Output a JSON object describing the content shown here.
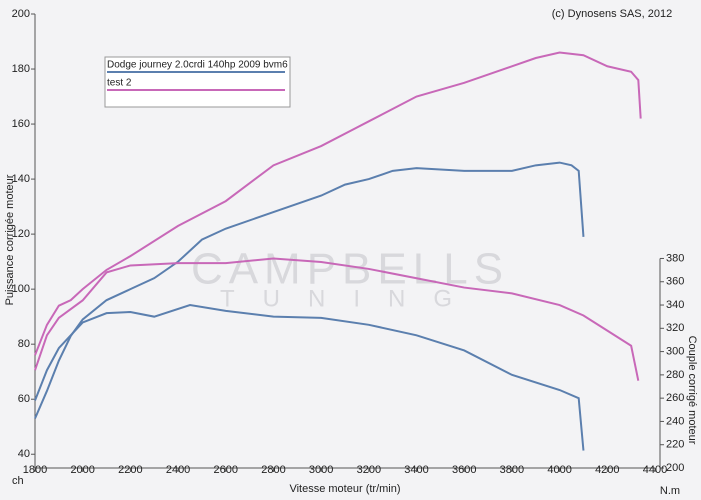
{
  "chart_data": {
    "type": "line",
    "title": "(c) Dynosens SAS, 2012",
    "xlabel": "Vitesse moteur (tr/min)",
    "ylabel": "Puissance corrigée moteur",
    "y2label": "Couple corrigé moteur",
    "yunit": "ch",
    "y2unit": "N.m",
    "watermark": [
      "CAMPBELLS",
      "TUNING"
    ],
    "xlim": [
      1800,
      4400
    ],
    "xticks": [
      1800,
      2000,
      2200,
      2400,
      2600,
      2800,
      3000,
      3200,
      3400,
      3600,
      3800,
      4000,
      4200,
      4400
    ],
    "ylim": [
      35,
      200
    ],
    "yticks": [
      40,
      60,
      80,
      100,
      120,
      140,
      160,
      180,
      200
    ],
    "y2lim": [
      200,
      590
    ],
    "y2ticks": [
      200,
      220,
      240,
      260,
      280,
      300,
      320,
      340,
      360,
      380
    ],
    "legend": "upper left",
    "series": [
      {
        "name": "Dodge journey 2.0crdi 140hp 2009 bvm6",
        "color": "#5b7fae",
        "x": [
          1800,
          1850,
          1900,
          1950,
          2000,
          2100,
          2200,
          2300,
          2400,
          2500,
          2600,
          2800,
          3000,
          3100,
          3200,
          3300,
          3400,
          3600,
          3800,
          3900,
          4000,
          4050,
          4080,
          4100
        ],
        "values": [
          53,
          63,
          74,
          83,
          89,
          96,
          100,
          104,
          110,
          118,
          122,
          128,
          134,
          138,
          140,
          143,
          144,
          143,
          143,
          145,
          146,
          145,
          143,
          119
        ]
      },
      {
        "name": "test 2",
        "color": "#c868b8",
        "x": [
          1800,
          1850,
          1900,
          1950,
          2000,
          2100,
          2200,
          2400,
          2600,
          2800,
          3000,
          3200,
          3400,
          3600,
          3800,
          3900,
          4000,
          4100,
          4200,
          4300,
          4330,
          4340
        ],
        "values": [
          76,
          87,
          94,
          96,
          100,
          107,
          112,
          123,
          132,
          145,
          152,
          161,
          170,
          175,
          181,
          184,
          186,
          185,
          181,
          179,
          176,
          162
        ]
      },
      {
        "axis": "y2",
        "color": "#5b7fae",
        "x": [
          1800,
          1850,
          1900,
          2000,
          2100,
          2200,
          2300,
          2450,
          2600,
          2800,
          3000,
          3200,
          3400,
          3600,
          3800,
          4000,
          4080,
          4100
        ],
        "values": [
          258,
          284,
          303,
          325,
          333,
          334,
          330,
          340,
          335,
          330,
          329,
          323,
          314,
          301,
          280,
          267,
          260,
          215
        ]
      },
      {
        "axis": "y2",
        "color": "#c868b8",
        "x": [
          1800,
          1850,
          1900,
          2000,
          2100,
          2200,
          2400,
          2600,
          2800,
          3000,
          3200,
          3400,
          3600,
          3800,
          4000,
          4100,
          4200,
          4300,
          4330
        ],
        "values": [
          284,
          314,
          329,
          344,
          368,
          374,
          376,
          376,
          380,
          377,
          371,
          363,
          355,
          350,
          340,
          331,
          318,
          305,
          275
        ]
      }
    ]
  }
}
